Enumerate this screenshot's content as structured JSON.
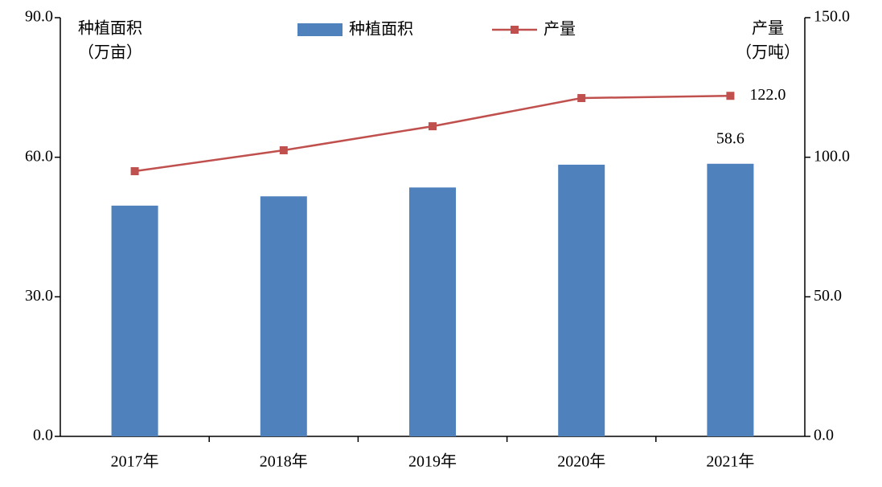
{
  "chart_data": {
    "type": "bar-line",
    "categories": [
      "2017年",
      "2018年",
      "2019年",
      "2020年",
      "2021年"
    ],
    "y_label": [
      "种植面积",
      "（万亩）"
    ],
    "y2_label": [
      "产量",
      "（万吨）"
    ],
    "ylim": [
      0,
      90
    ],
    "yticks": [
      {
        "value": 0,
        "label": "0.0"
      },
      {
        "value": 30,
        "label": "30.0"
      },
      {
        "value": 60,
        "label": "60.0"
      },
      {
        "value": 90,
        "label": "90.0"
      }
    ],
    "y2lim": [
      0,
      150
    ],
    "y2ticks": [
      {
        "value": 0,
        "label": "0.0"
      },
      {
        "value": 50,
        "label": "50.0"
      },
      {
        "value": 100,
        "label": "100.0"
      },
      {
        "value": 150,
        "label": "150.0"
      }
    ],
    "legend": "top",
    "series": [
      {
        "name": "种植面积",
        "type": "bar",
        "color": "#4f81bd",
        "values": [
          49.6,
          51.6,
          53.5,
          58.4,
          58.6
        ],
        "value_labels": [
          null,
          null,
          null,
          null,
          "58.6"
        ]
      },
      {
        "name": "产量",
        "type": "line",
        "axis": "y2",
        "color": "#c0504d",
        "values": [
          95.0,
          102.5,
          111.1,
          121.2,
          122.0
        ],
        "value_labels": [
          null,
          null,
          null,
          null,
          "122.0"
        ]
      }
    ]
  }
}
